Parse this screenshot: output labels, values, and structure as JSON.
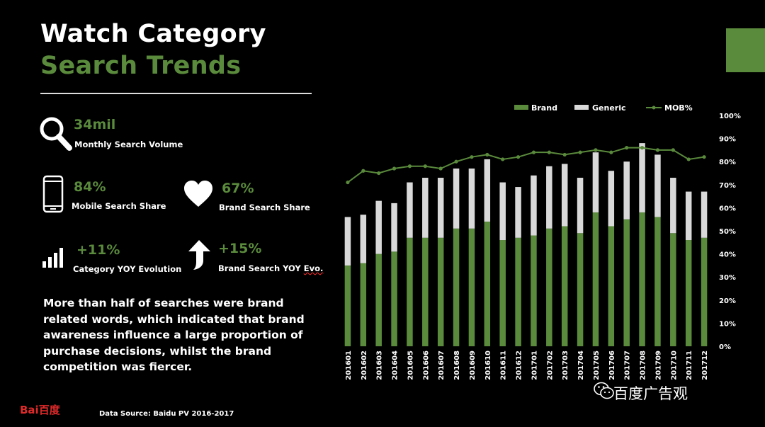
{
  "title": {
    "line1": "Watch Category",
    "line2": "Search Trends"
  },
  "kpis": {
    "volume": {
      "value": "34mil",
      "label": "Monthly Search Volume"
    },
    "mobile": {
      "value": "84%",
      "label": "Mobile Search Share"
    },
    "brand_share": {
      "value": "67%",
      "label": "Brand Search Share"
    },
    "category_yoy": {
      "value": "+11%",
      "label": "Category YOY Evolution"
    },
    "brand_yoy": {
      "value": "+15%",
      "label": "Brand Search YOY Evo."
    }
  },
  "paragraph": "More than half of searches were brand related words, which indicated that brand awareness influence a large proportion of purchase decisions, whilst the brand competition was fiercer.",
  "source": "Data Source: Baidu PV 2016-2017",
  "footer": {
    "logo_text": "Bai百度",
    "watermark": "百度广告观"
  },
  "colors": {
    "brand": "#5a8a3c",
    "generic": "#d9d9d9",
    "mob": "#5a8a3c",
    "background": "#000000"
  },
  "icons": [
    "search-icon",
    "mobile-icon",
    "heart-icon",
    "signal-bars-icon",
    "arrow-up-icon",
    "wechat-icon"
  ],
  "chart_data": {
    "type": "bar",
    "stacked": true,
    "legend": [
      "Brand",
      "Generic",
      "MOB%"
    ],
    "categories": [
      "201601",
      "201602",
      "201603",
      "201604",
      "201605",
      "201606",
      "201607",
      "201608",
      "201609",
      "201610",
      "201611",
      "201612",
      "201701",
      "201702",
      "201703",
      "201704",
      "201705",
      "201706",
      "201707",
      "201708",
      "201709",
      "201710",
      "201711",
      "201712"
    ],
    "series": [
      {
        "name": "Brand",
        "values": [
          35,
          36,
          40,
          41,
          47,
          47,
          47,
          51,
          51,
          54,
          46,
          47,
          48,
          51,
          52,
          49,
          58,
          52,
          55,
          58,
          56,
          49,
          46,
          47
        ]
      },
      {
        "name": "Generic",
        "values": [
          21,
          21,
          23,
          21,
          24,
          26,
          26,
          26,
          26,
          27,
          25,
          22,
          26,
          27,
          27,
          24,
          26,
          24,
          25,
          30,
          27,
          24,
          21,
          20
        ]
      }
    ],
    "line": {
      "name": "MOB%",
      "values": [
        71,
        76,
        75,
        77,
        78,
        78,
        77,
        80,
        82,
        83,
        81,
        82,
        84,
        84,
        83,
        84,
        85,
        84,
        86,
        86,
        85,
        85,
        81,
        82
      ]
    },
    "y_axis": {
      "ticks": [
        "0%",
        "10%",
        "20%",
        "30%",
        "40%",
        "50%",
        "60%",
        "70%",
        "80%",
        "90%",
        "100%"
      ],
      "ylim": [
        0,
        100
      ]
    },
    "legend_position": "top"
  }
}
